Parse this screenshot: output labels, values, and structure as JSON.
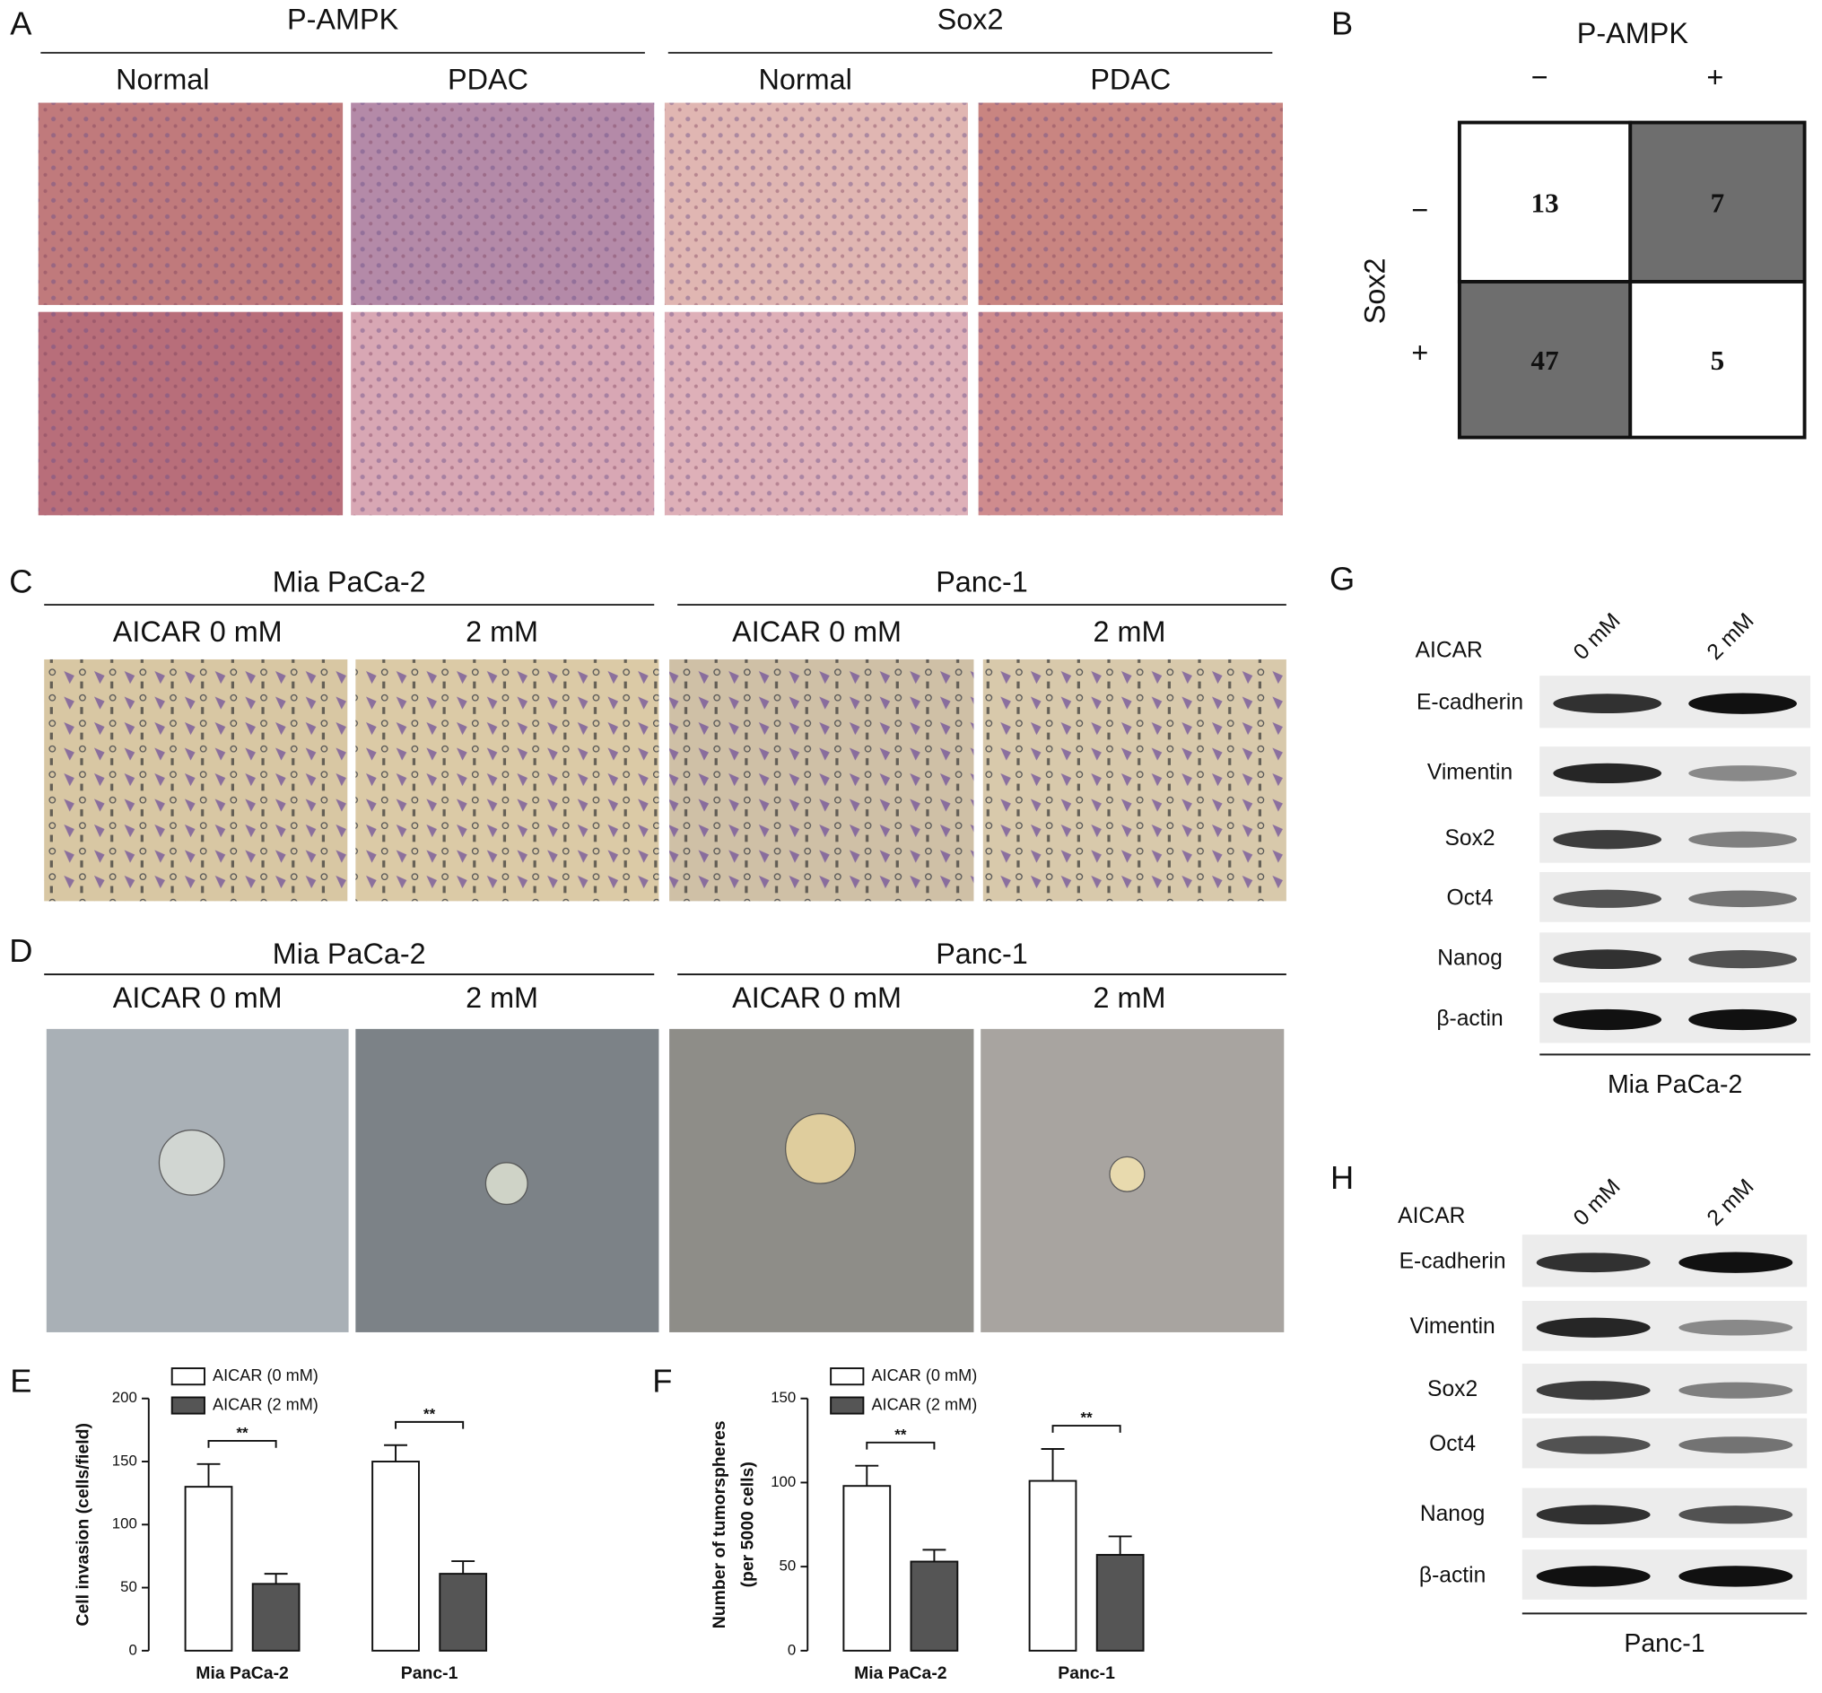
{
  "panel_a": {
    "label": "A",
    "groups": [
      {
        "title": "P-AMPK",
        "columns": [
          "Normal",
          "PDAC"
        ]
      },
      {
        "title": "Sox2",
        "columns": [
          "Normal",
          "PDAC"
        ]
      }
    ]
  },
  "panel_b": {
    "label": "B",
    "col_title": "P-AMPK",
    "col_signs": [
      "−",
      "+"
    ],
    "row_title": "Sox2",
    "row_signs": [
      "−",
      "+"
    ],
    "cells": [
      [
        13,
        7
      ],
      [
        47,
        5
      ]
    ]
  },
  "panel_c": {
    "label": "C",
    "groups": [
      {
        "title": "Mia PaCa-2",
        "columns": [
          "AICAR 0 mM",
          "2 mM"
        ]
      },
      {
        "title": "Panc-1",
        "columns": [
          "AICAR 0 mM",
          "2 mM"
        ]
      }
    ]
  },
  "panel_d": {
    "label": "D",
    "groups": [
      {
        "title": "Mia PaCa-2",
        "columns": [
          "AICAR 0 mM",
          "2 mM"
        ]
      },
      {
        "title": "Panc-1",
        "columns": [
          "AICAR 0 mM",
          "2 mM"
        ]
      }
    ]
  },
  "panel_g": {
    "label": "G",
    "treatment": "AICAR",
    "lanes": [
      "0 mM",
      "2 mM"
    ],
    "proteins": [
      "E-cadherin",
      "Vimentin",
      "Sox2",
      "Oct4",
      "Nanog",
      "β-actin"
    ],
    "cell_line": "Mia PaCa-2"
  },
  "panel_h": {
    "label": "H",
    "treatment": "AICAR",
    "lanes": [
      "0 mM",
      "2 mM"
    ],
    "proteins": [
      "E-cadherin",
      "Vimentin",
      "Sox2",
      "Oct4",
      "Nanog",
      "β-actin"
    ],
    "cell_line": "Panc-1"
  },
  "chart_data": [
    {
      "type": "bar",
      "panel": "E",
      "ylabel": [
        "Cell invasion (cells/field)"
      ],
      "categories": [
        "Mia PaCa-2",
        "Panc-1"
      ],
      "series": [
        {
          "name": "AICAR (0 mM)",
          "color": "#ffffff",
          "values": [
            130,
            150
          ],
          "errors": [
            18,
            13
          ]
        },
        {
          "name": "AICAR (2 mM)",
          "color": "#555555",
          "values": [
            53,
            61
          ],
          "errors": [
            8,
            10
          ]
        }
      ],
      "annotations": [
        "**",
        "**"
      ],
      "ylim": [
        0,
        200
      ],
      "yticks": [
        0,
        50,
        100,
        150,
        200
      ]
    },
    {
      "type": "bar",
      "panel": "F",
      "ylabel": [
        "Number of tumorspheres",
        "(per 5000 cells)"
      ],
      "categories": [
        "Mia PaCa-2",
        "Panc-1"
      ],
      "series": [
        {
          "name": "AICAR (0 mM)",
          "color": "#ffffff",
          "values": [
            98,
            101
          ],
          "errors": [
            12,
            19
          ]
        },
        {
          "name": "AICAR (2 mM)",
          "color": "#555555",
          "values": [
            53,
            57
          ],
          "errors": [
            7,
            11
          ]
        }
      ],
      "annotations": [
        "**",
        "**"
      ],
      "ylim": [
        0,
        150
      ],
      "yticks": [
        0,
        50,
        100,
        150
      ]
    }
  ]
}
